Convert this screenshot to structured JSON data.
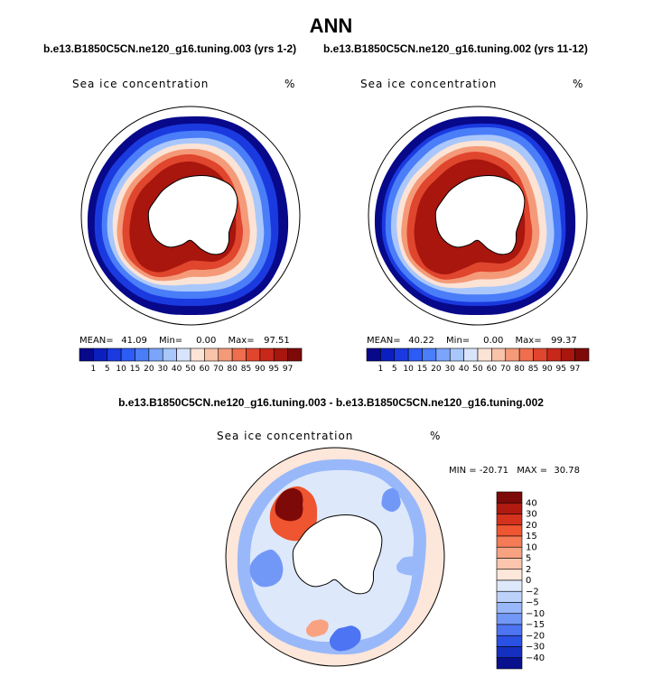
{
  "title": "ANN",
  "chart_data": [
    {
      "type": "heatmap",
      "projection": "south polar stereographic",
      "title": "b.e13.B1850C5CN.ne120_g16.tuning.003 (yrs 1-2)",
      "variable": "Sea ice concentration",
      "units": "%",
      "stats": {
        "mean_label": "MEAN=",
        "mean": "41.09",
        "min_label": "Min=",
        "min": "0.00",
        "max_label": "Max=",
        "max": "97.51"
      },
      "colorbar": {
        "levels": [
          "1",
          "5",
          "10",
          "15",
          "20",
          "30",
          "40",
          "50",
          "60",
          "70",
          "80",
          "85",
          "90",
          "95",
          "97"
        ],
        "colors": [
          "#08088a",
          "#0b1fbf",
          "#1a3ae0",
          "#2d5bf5",
          "#4a7df8",
          "#7aa5fa",
          "#a9c7fb",
          "#d7e4fb",
          "#fbe3d6",
          "#f8c3a8",
          "#f49a78",
          "#ee6e4e",
          "#e0452d",
          "#c8281a",
          "#a8160e",
          "#7d0a08"
        ]
      }
    },
    {
      "type": "heatmap",
      "projection": "south polar stereographic",
      "title": "b.e13.B1850C5CN.ne120_g16.tuning.002 (yrs 11-12)",
      "variable": "Sea ice concentration",
      "units": "%",
      "stats": {
        "mean_label": "MEAN=",
        "mean": "40.22",
        "min_label": "Min=",
        "min": "0.00",
        "max_label": "Max=",
        "max": "99.37"
      },
      "colorbar": {
        "levels": [
          "1",
          "5",
          "10",
          "15",
          "20",
          "30",
          "40",
          "50",
          "60",
          "70",
          "80",
          "85",
          "90",
          "95",
          "97"
        ],
        "colors": [
          "#08088a",
          "#0b1fbf",
          "#1a3ae0",
          "#2d5bf5",
          "#4a7df8",
          "#7aa5fa",
          "#a9c7fb",
          "#d7e4fb",
          "#fbe3d6",
          "#f8c3a8",
          "#f49a78",
          "#ee6e4e",
          "#e0452d",
          "#c8281a",
          "#a8160e",
          "#7d0a08"
        ]
      }
    },
    {
      "type": "heatmap",
      "projection": "south polar stereographic",
      "title": "b.e13.B1850C5CN.ne120_g16.tuning.003 - b.e13.B1850C5CN.ne120_g16.tuning.002",
      "variable": "Sea ice concentration",
      "units": "%",
      "stats": {
        "min_label": "MIN =",
        "min": "-20.71",
        "max_label": "MAX =",
        "max": "30.78"
      },
      "colorbar": {
        "levels": [
          "40",
          "30",
          "20",
          "15",
          "10",
          "5",
          "2",
          "0",
          "-2",
          "-5",
          "-10",
          "-15",
          "-20",
          "-30",
          "-40"
        ],
        "colors": [
          "#7d0a08",
          "#b01a10",
          "#d5321e",
          "#ee5530",
          "#f47b56",
          "#f8a282",
          "#fbc6ad",
          "#fde6da",
          "#dde8fb",
          "#bcd2fb",
          "#98b8fa",
          "#7298f7",
          "#4d74f2",
          "#2a50e4",
          "#1530c0",
          "#08108e"
        ]
      }
    }
  ]
}
